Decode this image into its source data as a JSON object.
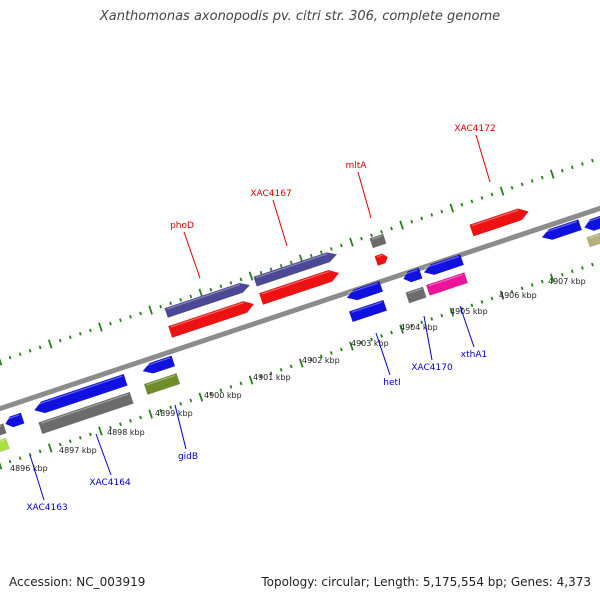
{
  "title": "Xanthomonas axonopodis pv. citri str. 306, complete genome",
  "footer": {
    "accession": "Accession: NC_003919",
    "stats": "Topology: circular; Length: 5,175,554 bp; Genes: 4,373"
  },
  "colors": {
    "backbone": "#8c8c8c",
    "tick": "#2a7d1f",
    "forward_label": "#dd0000",
    "reverse_label": "#0000cc",
    "red": "#ee1111",
    "navy": "#4b4896",
    "blue": "#1010e0",
    "gray": "#6b6b6b",
    "olive": "#6e8e2a",
    "lime": "#a7e340",
    "magenta": "#ee1199",
    "khaki": "#b5b07a"
  },
  "scale": {
    "unit": "kbp",
    "labels": [
      "4896 kbp",
      "4897 kbp",
      "4898 kbp",
      "4899 kbp",
      "4900 kbp",
      "4901 kbp",
      "4902 kbp",
      "4903 kbp",
      "4904 kbp",
      "4905 kbp",
      "4906 kbp",
      "4907 kbp"
    ]
  },
  "genes": [
    {
      "label": "phoD",
      "strand": "forward"
    },
    {
      "label": "XAC4167",
      "strand": "forward"
    },
    {
      "label": "mltA",
      "strand": "forward"
    },
    {
      "label": "XAC4172",
      "strand": "forward"
    },
    {
      "label": "XAC4163",
      "strand": "reverse"
    },
    {
      "label": "XAC4164",
      "strand": "reverse"
    },
    {
      "label": "gidB",
      "strand": "reverse"
    },
    {
      "label": "hetI",
      "strand": "reverse"
    },
    {
      "label": "XAC4170",
      "strand": "reverse"
    },
    {
      "label": "xthA1",
      "strand": "reverse"
    }
  ]
}
